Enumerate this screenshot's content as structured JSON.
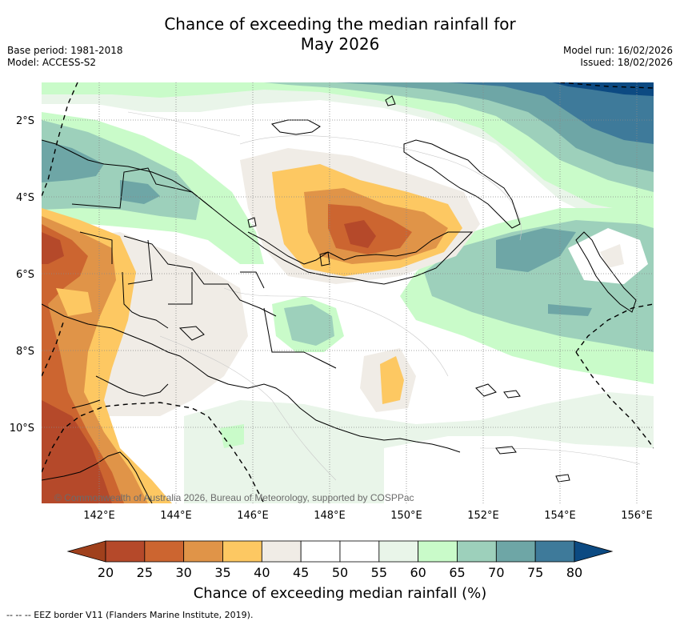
{
  "header": {
    "title_line1": "Chance of exceeding the median rainfall for",
    "title_line2": "May 2026",
    "base_period": "Base period: 1981-2018",
    "model": "Model: ACCESS-S2",
    "model_run": "Model run: 16/02/2026",
    "issued": "Issued: 18/02/2026"
  },
  "map": {
    "lat_labels": [
      "2°S",
      "4°S",
      "6°S",
      "8°S",
      "10°S"
    ],
    "lon_labels": [
      "142°E",
      "144°E",
      "146°E",
      "148°E",
      "150°E",
      "152°E",
      "154°E",
      "156°E"
    ],
    "copyright": "© Commonwealth of Australia 2026, Bureau of Meteorology, supported by COSPPac"
  },
  "colorbar": {
    "ticks": [
      "20",
      "25",
      "30",
      "35",
      "40",
      "45",
      "50",
      "55",
      "60",
      "65",
      "70",
      "75",
      "80"
    ],
    "colors": [
      "#a0401c",
      "#b5492a",
      "#cc6530",
      "#e09448",
      "#fdc862",
      "#f0ece6",
      "#ffffff",
      "#ffffff",
      "#e9f5e9",
      "#c9fbc9",
      "#9dd0bb",
      "#6ea6a6",
      "#3e7a9a",
      "#0c4a82"
    ],
    "label": "Chance of exceeding median rainfall (%)"
  },
  "footer": {
    "legend_text": "--  --  -- EEZ border V11 (Flanders Marine Institute, 2019)."
  }
}
